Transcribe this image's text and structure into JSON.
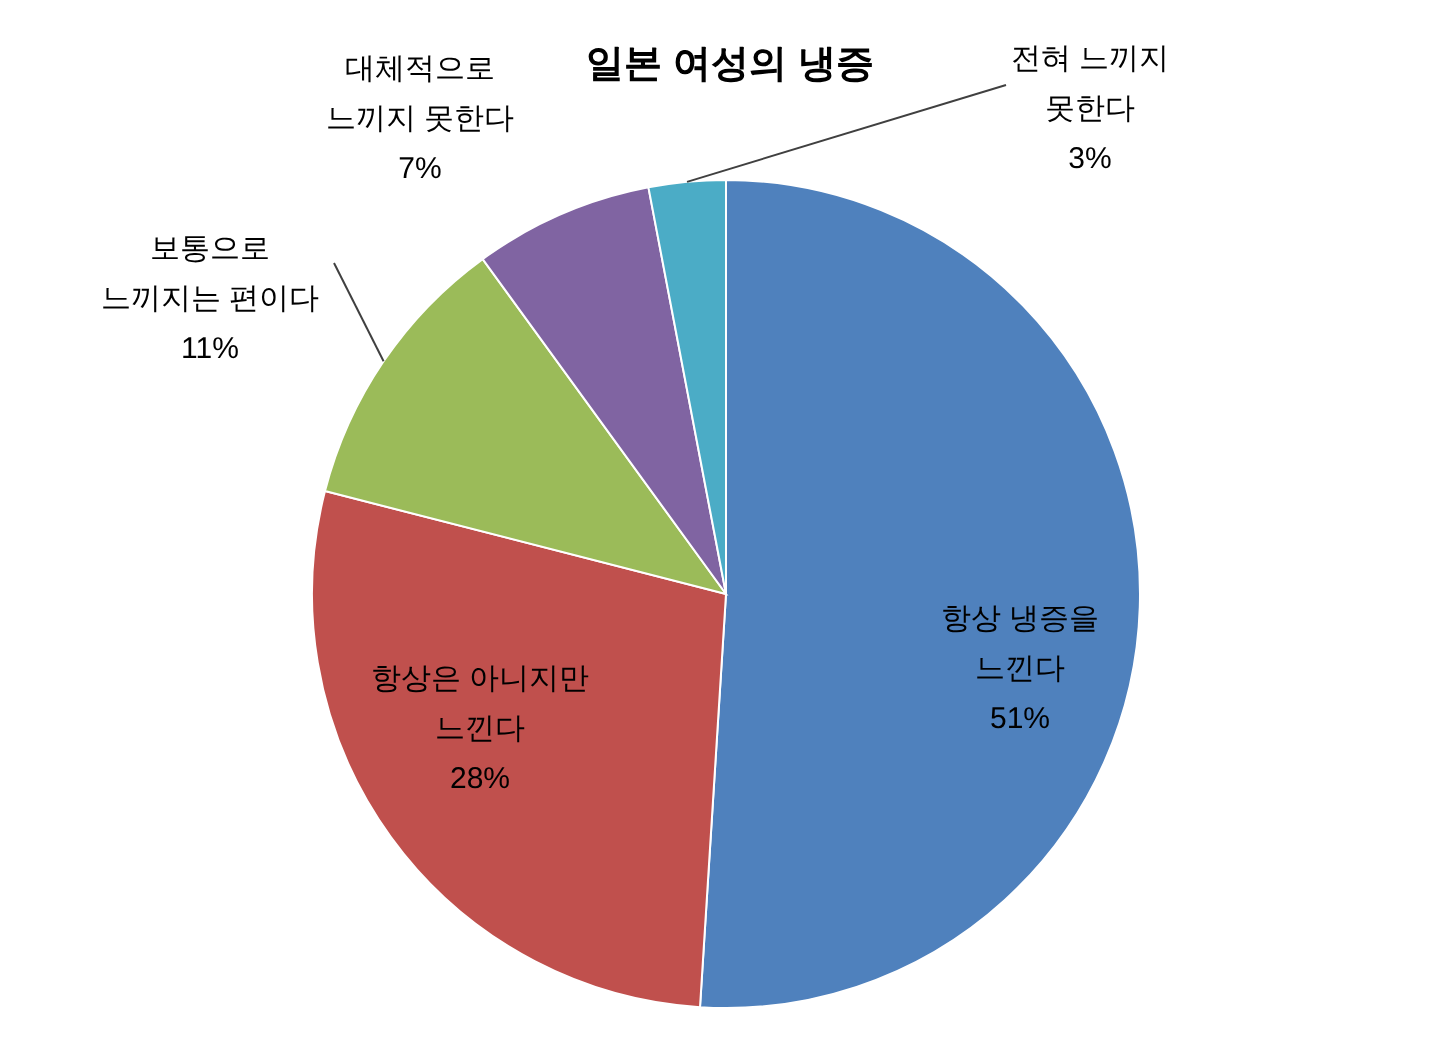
{
  "chart_data": {
    "type": "pie",
    "title": "일본 여성의 냉증",
    "categories": [
      "항상 냉증을\n느낀다",
      "항상은 아니지만\n느낀다",
      "보통으로\n느끼지는 편이다",
      "대체적으로\n느끼지 못한다",
      "전혀 느끼지\n못한다"
    ],
    "values": [
      51,
      28,
      11,
      7,
      3
    ],
    "value_labels": [
      "51%",
      "28%",
      "11%",
      "7%",
      "3%"
    ],
    "colors": [
      "#4f81bd",
      "#c0504d",
      "#9bbb59",
      "#8064a2",
      "#4bacc6"
    ]
  }
}
